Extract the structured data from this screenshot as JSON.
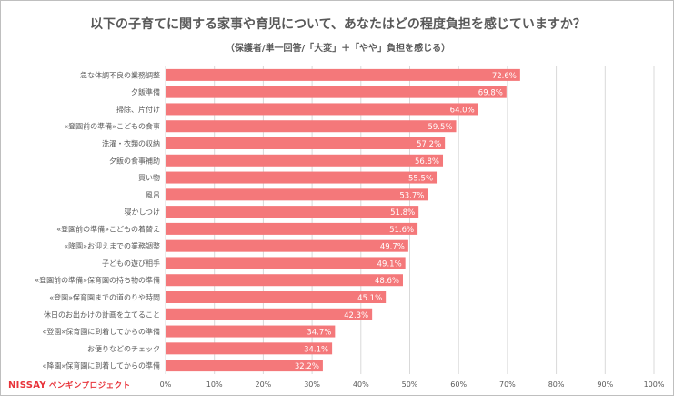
{
  "title": "以下の子育てに関する家事や育児について、あなたはどの程度負担を感じていますか？",
  "subtitle": "（保護者/単一回答/「大変」＋「やや」負担を感じる）",
  "logo": {
    "brand": "NISSAY",
    "sub": "ペンギンプロジェクト"
  },
  "colors": {
    "bar": "#f4787a",
    "label_text": "#ffffff",
    "grid": "#d9d9d9",
    "axis_text": "#595959",
    "brand": "#e8333a"
  },
  "chart_data": {
    "type": "bar",
    "orientation": "horizontal",
    "title": "以下の子育てに関する家事や育児について、あなたはどの程度負担を感じていますか？",
    "subtitle": "（保護者/単一回答/「大変」＋「やや」負担を感じる）",
    "xlim": [
      0,
      100
    ],
    "xticks": [
      "0%",
      "10%",
      "20%",
      "30%",
      "40%",
      "50%",
      "60%",
      "70%",
      "80%",
      "90%",
      "100%"
    ],
    "grid": true,
    "unit": "%",
    "categories": [
      "急な体調不良の業務調整",
      "夕飯準備",
      "掃除、片付け",
      "«登園前の準備»こどもの食事",
      "洗濯・衣類の収納",
      "夕飯の食事補助",
      "買い物",
      "風呂",
      "寝かしつけ",
      "«登園前の準備»こどもの着替え",
      "«降園»お迎えまでの業務調整",
      "子どもの遊び相手",
      "«登園前の準備»保育園の持ち物の準備",
      "«登園»保育園までの道のりや時間",
      "休日のお出かけの計画を立てること",
      "«登園»保育園に到着してからの準備",
      "お便りなどのチェック",
      "«降園»保育園に到着してからの準備"
    ],
    "values": [
      72.6,
      69.8,
      64.0,
      59.5,
      57.2,
      56.8,
      55.5,
      53.7,
      51.8,
      51.6,
      49.7,
      49.1,
      48.6,
      45.1,
      42.3,
      34.7,
      34.1,
      32.2
    ],
    "data_labels": [
      "72.6%",
      "69.8%",
      "64.0%",
      "59.5%",
      "57.2%",
      "56.8%",
      "55.5%",
      "53.7%",
      "51.8%",
      "51.6%",
      "49.7%",
      "49.1%",
      "48.6%",
      "45.1%",
      "42.3%",
      "34.7%",
      "34.1%",
      "32.2%"
    ]
  }
}
